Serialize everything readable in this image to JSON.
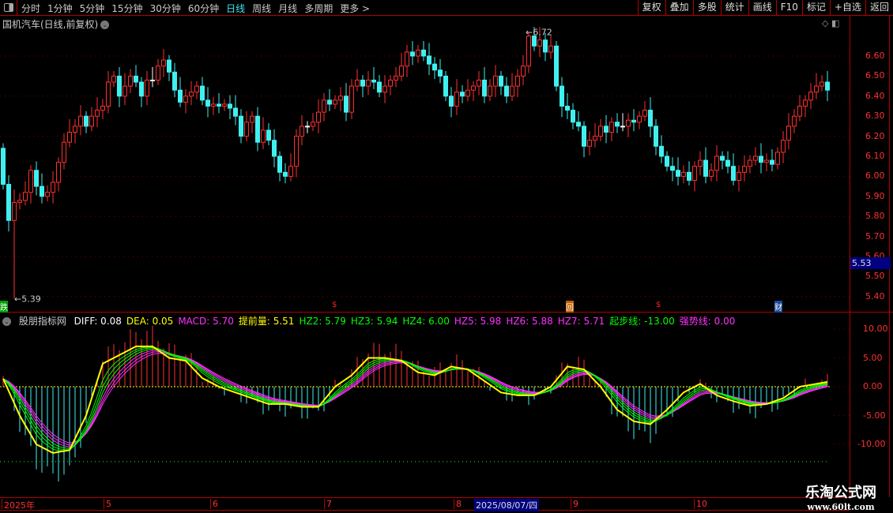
{
  "toolbar": {
    "periods": [
      "分时",
      "1分钟",
      "5分钟",
      "15分钟",
      "30分钟",
      "60分钟",
      "日线",
      "周线",
      "月线",
      "多周期",
      "更多 >"
    ],
    "active_period": "日线",
    "buttons": [
      "复权",
      "叠加",
      "多股",
      "统计",
      "画线",
      "F10",
      "标记",
      "+自选",
      "返回"
    ]
  },
  "main": {
    "title": "国机汽车(日线,前复权)",
    "price_axis": [
      "6.60",
      "6.50",
      "6.40",
      "6.30",
      "6.20",
      "6.10",
      "6.00",
      "5.90",
      "5.80",
      "5.70",
      "5.60",
      "5.50",
      "5.40"
    ],
    "current_price": "5.53",
    "high_label": "6.72",
    "low_label": "5.39",
    "markers": [
      {
        "text": "跌",
        "color": "#00a000"
      },
      {
        "text": "$",
        "color": "#ff2020"
      },
      {
        "text": "回",
        "color": "#c06000"
      },
      {
        "text": "$",
        "color": "#ff2020"
      },
      {
        "text": "财",
        "color": "#1a4a9a"
      }
    ],
    "colors": {
      "up": "#ff3030",
      "down": "#40f0f0",
      "flat": "#ffffff"
    }
  },
  "indicator": {
    "name": "股朋指标网",
    "values": [
      {
        "label": "DIFF: 0.08",
        "color": "#ffffff"
      },
      {
        "label": "DEA: 0.05",
        "color": "#ffff00"
      },
      {
        "label": "MACD: 5.70",
        "color": "#ff30ff"
      },
      {
        "label": "提前量: 5.51",
        "color": "#ffff00"
      },
      {
        "label": "HZ2: 5.79",
        "color": "#00ff00"
      },
      {
        "label": "HZ3: 5.94",
        "color": "#00ff00"
      },
      {
        "label": "HZ4: 6.00",
        "color": "#00ff00"
      },
      {
        "label": "HZ5: 5.98",
        "color": "#ff30ff"
      },
      {
        "label": "HZ6: 5.88",
        "color": "#ff30ff"
      },
      {
        "label": "HZ7: 5.71",
        "color": "#ff30ff"
      },
      {
        "label": "起步线: -13.00",
        "color": "#00ff00"
      },
      {
        "label": "强势线: 0.00",
        "color": "#ff30ff"
      }
    ],
    "axis": [
      "10.00",
      "5.00",
      "0.00",
      "-5.00",
      "-10.00"
    ]
  },
  "date_axis": {
    "labels": [
      "2025年",
      "5",
      "6",
      "7",
      "8",
      "9",
      "10"
    ],
    "selected": "2025/08/07/四"
  },
  "watermark": {
    "title": "乐淘公式网",
    "url": "www.60lt.com"
  },
  "chart_data": {
    "type": "candlestick",
    "price_range": [
      5.35,
      6.75
    ],
    "close": [
      5.96,
      5.78,
      5.87,
      5.88,
      5.92,
      6.03,
      5.95,
      5.9,
      5.92,
      5.97,
      6.07,
      6.17,
      6.22,
      6.25,
      6.3,
      6.25,
      6.3,
      6.33,
      6.35,
      6.47,
      6.5,
      6.4,
      6.45,
      6.5,
      6.47,
      6.4,
      6.48,
      6.48,
      6.55,
      6.58,
      6.52,
      6.43,
      6.37,
      6.4,
      6.42,
      6.45,
      6.38,
      6.35,
      6.36,
      6.35,
      6.36,
      6.34,
      6.3,
      6.2,
      6.27,
      6.3,
      6.17,
      6.23,
      6.18,
      6.1,
      6.02,
      6.0,
      6.05,
      6.2,
      6.25,
      6.25,
      6.27,
      6.32,
      6.38,
      6.36,
      6.38,
      6.4,
      6.32,
      6.45,
      6.48,
      6.45,
      6.48,
      6.47,
      6.42,
      6.45,
      6.48,
      6.5,
      6.55,
      6.62,
      6.6,
      6.63,
      6.6,
      6.56,
      6.53,
      6.5,
      6.4,
      6.35,
      6.42,
      6.4,
      6.43,
      6.45,
      6.48,
      6.4,
      6.45,
      6.5,
      6.45,
      6.4,
      6.45,
      6.5,
      6.55,
      6.7,
      6.65,
      6.68,
      6.62,
      6.65,
      6.45,
      6.35,
      6.33,
      6.27,
      6.25,
      6.15,
      6.18,
      6.2,
      6.25,
      6.22,
      6.27,
      6.25,
      6.25,
      6.28,
      6.27,
      6.3,
      6.33,
      6.25,
      6.15,
      6.1,
      6.05,
      6.03,
      6.0,
      6.02,
      5.98,
      6.05,
      6.08,
      6.0,
      6.03,
      6.1,
      6.08,
      6.05,
      5.98,
      6.02,
      6.05,
      6.08,
      6.1,
      6.07,
      6.08,
      6.06,
      6.12,
      6.18,
      6.25,
      6.3,
      6.35,
      6.38,
      6.42,
      6.45,
      6.47,
      6.43
    ],
    "extremes": {
      "high": 6.72,
      "low": 5.39
    },
    "indicator_range": [
      -14,
      12
    ],
    "lead_line_every_3rd_bar": [
      1.4,
      -5,
      -10,
      -11.5,
      -11,
      -5,
      4,
      5.5,
      7,
      7,
      5,
      4.5,
      1.5,
      0,
      -1,
      -2,
      -3,
      -3,
      -3.5,
      -3.5,
      0,
      2,
      5,
      5,
      4.5,
      2.5,
      2,
      3.5,
      3,
      1,
      -1,
      -1.5,
      -1.5,
      0,
      3.5,
      3,
      0,
      -4,
      -6,
      -6.5,
      -4,
      -1,
      0.5,
      -1.5,
      -2.5,
      -3.3,
      -3,
      -2,
      0,
      0.5,
      1,
      2,
      4,
      5.5
    ],
    "start_line": -13,
    "strong_line": 0
  }
}
